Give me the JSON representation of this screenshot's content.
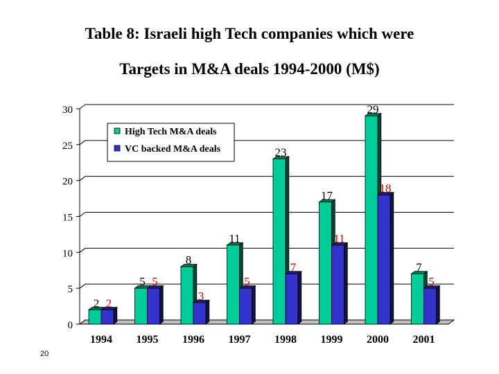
{
  "title_line1": "Table 8: Israeli high Tech companies which were",
  "title_line2": "Targets in M&A deals 1994-2000 (M$)",
  "slide_number": "20",
  "chart_data": {
    "type": "bar",
    "categories": [
      "1994",
      "1995",
      "1996",
      "1997",
      "1998",
      "1999",
      "2000",
      "2001"
    ],
    "series": [
      {
        "name": "High Tech M&A deals",
        "values": [
          2,
          5,
          8,
          11,
          23,
          17,
          29,
          7
        ],
        "color": "#00cc99",
        "label_color": "#000000"
      },
      {
        "name": "VC backed M&A deals",
        "values": [
          2,
          5,
          3,
          5,
          7,
          11,
          18,
          5
        ],
        "color": "#3333cc",
        "label_color": "#cc0000"
      }
    ],
    "data_labels": [
      [
        "2",
        "5",
        "8",
        "11",
        "23",
        "17",
        "29",
        "7"
      ],
      [
        "2",
        "5",
        "3",
        "5",
        "7",
        "11",
        "18",
        "5"
      ]
    ],
    "ylim": [
      0,
      30
    ],
    "yticks": [
      "0",
      "5",
      "10",
      "15",
      "20",
      "25",
      "30"
    ],
    "grid": true,
    "legend": "top-left",
    "xlabel": "",
    "ylabel": ""
  }
}
